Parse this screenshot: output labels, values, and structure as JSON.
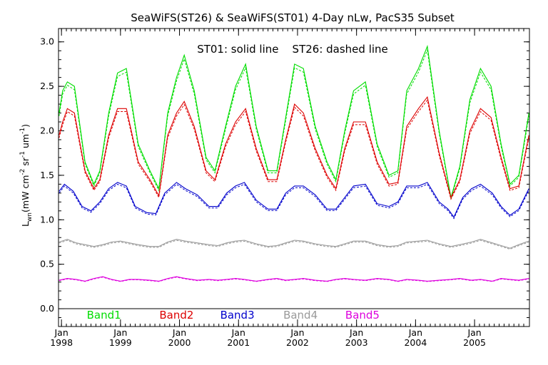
{
  "chart_data": {
    "type": "line",
    "title": "SeaWiFS(ST26) & SeaWiFS(ST01) 4-Day nLw, PacS35 Subset",
    "annotation": "ST01: solid line    ST26: dashed line",
    "ylabel": {
      "main": "L",
      "sub": "wn",
      "units_prefix": "(mW cm",
      "exp1": "-2",
      "mid": " sr",
      "exp2": "-1",
      "mid2": " um",
      "exp3": "-1",
      "units_suffix": ")"
    },
    "xlim": [
      1997.95,
      2005.93
    ],
    "ylim": [
      -0.2,
      3.15
    ],
    "yticks": [
      "0.0",
      "0.5",
      "1.0",
      "1.5",
      "2.0",
      "2.5",
      "3.0"
    ],
    "ytick_values": [
      0.0,
      0.5,
      1.0,
      1.5,
      2.0,
      2.5,
      3.0
    ],
    "xticks": [
      {
        "month": "Jan",
        "year": "1998",
        "value": 1998
      },
      {
        "month": "Jan",
        "year": "1999",
        "value": 1999
      },
      {
        "month": "Jan",
        "year": "2000",
        "value": 2000
      },
      {
        "month": "Jan",
        "year": "2001",
        "value": 2001
      },
      {
        "month": "Jan",
        "year": "2002",
        "value": 2002
      },
      {
        "month": "Jan",
        "year": "2003",
        "value": 2003
      },
      {
        "month": "Jan",
        "year": "2004",
        "value": 2004
      },
      {
        "month": "Jan",
        "year": "2005",
        "value": 2005
      }
    ],
    "grid": false,
    "series": [
      {
        "name": "Band1",
        "color": "#00dd00",
        "points": [
          [
            1997.96,
            2.2
          ],
          [
            1998.02,
            2.45
          ],
          [
            1998.1,
            2.55
          ],
          [
            1998.22,
            2.5
          ],
          [
            1998.4,
            1.65
          ],
          [
            1998.55,
            1.4
          ],
          [
            1998.65,
            1.55
          ],
          [
            1998.8,
            2.2
          ],
          [
            1998.95,
            2.65
          ],
          [
            1999.1,
            2.7
          ],
          [
            1999.3,
            1.85
          ],
          [
            1999.5,
            1.55
          ],
          [
            1999.65,
            1.35
          ],
          [
            1999.8,
            2.2
          ],
          [
            1999.95,
            2.6
          ],
          [
            2000.08,
            2.85
          ],
          [
            2000.25,
            2.45
          ],
          [
            2000.45,
            1.7
          ],
          [
            2000.6,
            1.55
          ],
          [
            2000.78,
            2.05
          ],
          [
            2000.95,
            2.5
          ],
          [
            2001.12,
            2.75
          ],
          [
            2001.3,
            2.05
          ],
          [
            2001.5,
            1.55
          ],
          [
            2001.65,
            1.55
          ],
          [
            2001.8,
            2.15
          ],
          [
            2001.95,
            2.75
          ],
          [
            2002.1,
            2.7
          ],
          [
            2002.3,
            2.05
          ],
          [
            2002.5,
            1.65
          ],
          [
            2002.65,
            1.45
          ],
          [
            2002.8,
            2.0
          ],
          [
            2002.95,
            2.45
          ],
          [
            2003.15,
            2.55
          ],
          [
            2003.35,
            1.85
          ],
          [
            2003.55,
            1.5
          ],
          [
            2003.7,
            1.55
          ],
          [
            2003.85,
            2.45
          ],
          [
            2004.05,
            2.7
          ],
          [
            2004.2,
            2.95
          ],
          [
            2004.4,
            2.0
          ],
          [
            2004.6,
            1.25
          ],
          [
            2004.75,
            1.6
          ],
          [
            2004.92,
            2.35
          ],
          [
            2005.1,
            2.7
          ],
          [
            2005.28,
            2.5
          ],
          [
            2005.45,
            1.85
          ],
          [
            2005.6,
            1.4
          ],
          [
            2005.75,
            1.5
          ],
          [
            2005.92,
            2.2
          ]
        ]
      },
      {
        "name": "Band2",
        "color": "#dd0000",
        "points": [
          [
            1997.96,
            1.95
          ],
          [
            1998.02,
            2.1
          ],
          [
            1998.1,
            2.25
          ],
          [
            1998.22,
            2.2
          ],
          [
            1998.4,
            1.55
          ],
          [
            1998.55,
            1.35
          ],
          [
            1998.65,
            1.45
          ],
          [
            1998.8,
            1.95
          ],
          [
            1998.95,
            2.25
          ],
          [
            1999.1,
            2.25
          ],
          [
            1999.3,
            1.65
          ],
          [
            1999.5,
            1.45
          ],
          [
            1999.65,
            1.27
          ],
          [
            1999.8,
            1.95
          ],
          [
            1999.95,
            2.2
          ],
          [
            2000.08,
            2.33
          ],
          [
            2000.25,
            2.05
          ],
          [
            2000.45,
            1.55
          ],
          [
            2000.6,
            1.45
          ],
          [
            2000.78,
            1.85
          ],
          [
            2000.95,
            2.1
          ],
          [
            2001.12,
            2.25
          ],
          [
            2001.3,
            1.8
          ],
          [
            2001.5,
            1.45
          ],
          [
            2001.65,
            1.45
          ],
          [
            2001.8,
            1.9
          ],
          [
            2001.95,
            2.3
          ],
          [
            2002.1,
            2.2
          ],
          [
            2002.3,
            1.8
          ],
          [
            2002.5,
            1.5
          ],
          [
            2002.65,
            1.35
          ],
          [
            2002.8,
            1.8
          ],
          [
            2002.95,
            2.1
          ],
          [
            2003.15,
            2.1
          ],
          [
            2003.35,
            1.65
          ],
          [
            2003.55,
            1.4
          ],
          [
            2003.7,
            1.42
          ],
          [
            2003.85,
            2.05
          ],
          [
            2004.05,
            2.25
          ],
          [
            2004.2,
            2.38
          ],
          [
            2004.4,
            1.75
          ],
          [
            2004.6,
            1.25
          ],
          [
            2004.75,
            1.45
          ],
          [
            2004.92,
            2.0
          ],
          [
            2005.1,
            2.25
          ],
          [
            2005.28,
            2.15
          ],
          [
            2005.45,
            1.7
          ],
          [
            2005.6,
            1.35
          ],
          [
            2005.75,
            1.38
          ],
          [
            2005.92,
            1.95
          ]
        ]
      },
      {
        "name": "Band3",
        "color": "#0000cc",
        "points": [
          [
            1997.96,
            1.32
          ],
          [
            1998.05,
            1.4
          ],
          [
            1998.2,
            1.32
          ],
          [
            1998.35,
            1.15
          ],
          [
            1998.5,
            1.1
          ],
          [
            1998.65,
            1.2
          ],
          [
            1998.8,
            1.35
          ],
          [
            1998.95,
            1.42
          ],
          [
            1999.1,
            1.38
          ],
          [
            1999.25,
            1.15
          ],
          [
            1999.45,
            1.08
          ],
          [
            1999.6,
            1.07
          ],
          [
            1999.75,
            1.3
          ],
          [
            1999.95,
            1.42
          ],
          [
            2000.1,
            1.35
          ],
          [
            2000.3,
            1.28
          ],
          [
            2000.5,
            1.15
          ],
          [
            2000.65,
            1.15
          ],
          [
            2000.8,
            1.3
          ],
          [
            2000.95,
            1.38
          ],
          [
            2001.1,
            1.42
          ],
          [
            2001.3,
            1.22
          ],
          [
            2001.5,
            1.12
          ],
          [
            2001.65,
            1.12
          ],
          [
            2001.8,
            1.3
          ],
          [
            2001.95,
            1.38
          ],
          [
            2002.1,
            1.38
          ],
          [
            2002.3,
            1.28
          ],
          [
            2002.5,
            1.12
          ],
          [
            2002.65,
            1.12
          ],
          [
            2002.8,
            1.25
          ],
          [
            2002.95,
            1.38
          ],
          [
            2003.15,
            1.4
          ],
          [
            2003.35,
            1.18
          ],
          [
            2003.55,
            1.15
          ],
          [
            2003.7,
            1.2
          ],
          [
            2003.85,
            1.38
          ],
          [
            2004.05,
            1.38
          ],
          [
            2004.2,
            1.42
          ],
          [
            2004.4,
            1.2
          ],
          [
            2004.55,
            1.12
          ],
          [
            2004.65,
            1.03
          ],
          [
            2004.8,
            1.25
          ],
          [
            2004.95,
            1.35
          ],
          [
            2005.1,
            1.4
          ],
          [
            2005.3,
            1.3
          ],
          [
            2005.45,
            1.15
          ],
          [
            2005.6,
            1.05
          ],
          [
            2005.75,
            1.12
          ],
          [
            2005.92,
            1.35
          ]
        ]
      },
      {
        "name": "Band4",
        "color": "#999999",
        "points": [
          [
            1997.96,
            0.75
          ],
          [
            1998.1,
            0.78
          ],
          [
            1998.25,
            0.74
          ],
          [
            1998.4,
            0.72
          ],
          [
            1998.55,
            0.7
          ],
          [
            1998.7,
            0.72
          ],
          [
            1998.85,
            0.75
          ],
          [
            1999.0,
            0.76
          ],
          [
            1999.15,
            0.74
          ],
          [
            1999.3,
            0.72
          ],
          [
            1999.5,
            0.7
          ],
          [
            1999.65,
            0.7
          ],
          [
            1999.8,
            0.75
          ],
          [
            1999.95,
            0.78
          ],
          [
            2000.1,
            0.76
          ],
          [
            2000.3,
            0.74
          ],
          [
            2000.5,
            0.72
          ],
          [
            2000.65,
            0.71
          ],
          [
            2000.8,
            0.74
          ],
          [
            2000.95,
            0.76
          ],
          [
            2001.1,
            0.77
          ],
          [
            2001.3,
            0.73
          ],
          [
            2001.5,
            0.7
          ],
          [
            2001.65,
            0.71
          ],
          [
            2001.8,
            0.74
          ],
          [
            2001.95,
            0.77
          ],
          [
            2002.1,
            0.76
          ],
          [
            2002.3,
            0.73
          ],
          [
            2002.5,
            0.71
          ],
          [
            2002.65,
            0.7
          ],
          [
            2002.8,
            0.73
          ],
          [
            2002.95,
            0.76
          ],
          [
            2003.15,
            0.76
          ],
          [
            2003.35,
            0.72
          ],
          [
            2003.55,
            0.7
          ],
          [
            2003.7,
            0.71
          ],
          [
            2003.85,
            0.75
          ],
          [
            2004.05,
            0.76
          ],
          [
            2004.2,
            0.77
          ],
          [
            2004.4,
            0.73
          ],
          [
            2004.6,
            0.7
          ],
          [
            2004.75,
            0.72
          ],
          [
            2004.95,
            0.75
          ],
          [
            2005.1,
            0.78
          ],
          [
            2005.3,
            0.74
          ],
          [
            2005.45,
            0.71
          ],
          [
            2005.6,
            0.68
          ],
          [
            2005.75,
            0.72
          ],
          [
            2005.92,
            0.76
          ]
        ]
      },
      {
        "name": "Band5",
        "color": "#dd00dd",
        "points": [
          [
            1997.96,
            0.32
          ],
          [
            1998.1,
            0.34
          ],
          [
            1998.25,
            0.33
          ],
          [
            1998.4,
            0.31
          ],
          [
            1998.55,
            0.34
          ],
          [
            1998.7,
            0.36
          ],
          [
            1998.85,
            0.33
          ],
          [
            1999.0,
            0.31
          ],
          [
            1999.15,
            0.33
          ],
          [
            1999.3,
            0.33
          ],
          [
            1999.5,
            0.32
          ],
          [
            1999.65,
            0.31
          ],
          [
            1999.8,
            0.34
          ],
          [
            1999.95,
            0.36
          ],
          [
            2000.1,
            0.34
          ],
          [
            2000.3,
            0.32
          ],
          [
            2000.5,
            0.33
          ],
          [
            2000.65,
            0.32
          ],
          [
            2000.8,
            0.33
          ],
          [
            2000.95,
            0.34
          ],
          [
            2001.1,
            0.33
          ],
          [
            2001.3,
            0.31
          ],
          [
            2001.5,
            0.33
          ],
          [
            2001.65,
            0.34
          ],
          [
            2001.8,
            0.32
          ],
          [
            2001.95,
            0.33
          ],
          [
            2002.1,
            0.34
          ],
          [
            2002.3,
            0.32
          ],
          [
            2002.5,
            0.31
          ],
          [
            2002.65,
            0.33
          ],
          [
            2002.8,
            0.34
          ],
          [
            2002.95,
            0.33
          ],
          [
            2003.15,
            0.32
          ],
          [
            2003.35,
            0.34
          ],
          [
            2003.55,
            0.33
          ],
          [
            2003.7,
            0.31
          ],
          [
            2003.85,
            0.33
          ],
          [
            2004.05,
            0.32
          ],
          [
            2004.2,
            0.31
          ],
          [
            2004.4,
            0.32
          ],
          [
            2004.6,
            0.33
          ],
          [
            2004.75,
            0.34
          ],
          [
            2004.95,
            0.32
          ],
          [
            2005.1,
            0.33
          ],
          [
            2005.3,
            0.31
          ],
          [
            2005.45,
            0.34
          ],
          [
            2005.6,
            0.33
          ],
          [
            2005.75,
            0.32
          ],
          [
            2005.92,
            0.34
          ]
        ]
      }
    ]
  }
}
